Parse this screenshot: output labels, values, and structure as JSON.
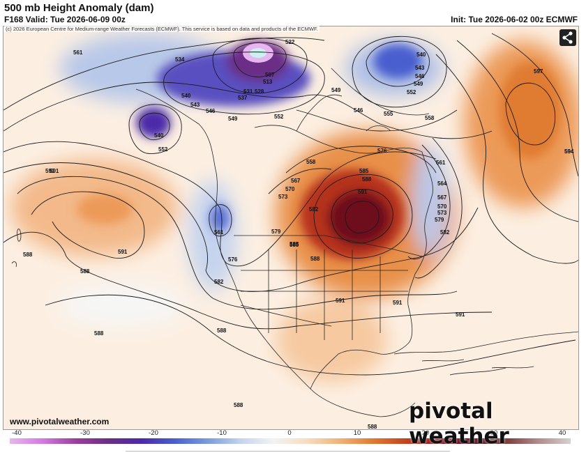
{
  "header": {
    "title": "500 mb Height Anomaly (dam)",
    "valid": "F168 Valid: Tue 2026-06-09 00z",
    "init": "Init: Tue 2026-06-02 00z ECMWF"
  },
  "map": {
    "copyright": "(c) 2026 European Centre for Medium-range Weather Forecasts (ECMWF). This service is based on data and products of the ECMWF.",
    "website": "www.pivotalweather.com",
    "brand": "pivotal weather",
    "share_icon": "share-icon",
    "contour_labels": [
      "561",
      "534",
      "522",
      "507",
      "513",
      "531",
      "528",
      "537",
      "540",
      "543",
      "546",
      "549",
      "552",
      "555",
      "558",
      "561",
      "564",
      "567",
      "570",
      "573",
      "576",
      "579",
      "582",
      "585",
      "588",
      "591",
      "594",
      "597",
      "540",
      "543",
      "546",
      "549",
      "552",
      "540",
      "561",
      "591",
      "588",
      "582",
      "576",
      "585",
      "573",
      "570",
      "567",
      "558",
      "552",
      "549",
      "546",
      "591",
      "588",
      "588",
      "588",
      "591",
      "591",
      "591",
      "588",
      "588",
      "585",
      "579",
      "582",
      "588",
      "591",
      "594"
    ],
    "colors": {
      "negative_strong": "#5c2fb0",
      "negative": "#8fa8dd",
      "positive": "#e7893c",
      "positive_strong": "#6b0f1a",
      "background": "#fdf1e6"
    }
  },
  "colorbar": {
    "ticks": [
      "-40",
      "-30",
      "-20",
      "-10",
      "0",
      "10",
      "20",
      "30",
      "40"
    ],
    "stops": [
      "#e7b6ee",
      "#d27ae0",
      "#9a3f9e",
      "#6a2e86",
      "#4b2aa8",
      "#4a5fcf",
      "#7b9bdc",
      "#c5d3ee",
      "#f3f3f3",
      "#f8dcc0",
      "#f0b27a",
      "#e07b32",
      "#c4431f",
      "#8e1523",
      "#5c0b1a",
      "#7a3a3a",
      "#b08a8a",
      "#d6d0d0"
    ]
  }
}
